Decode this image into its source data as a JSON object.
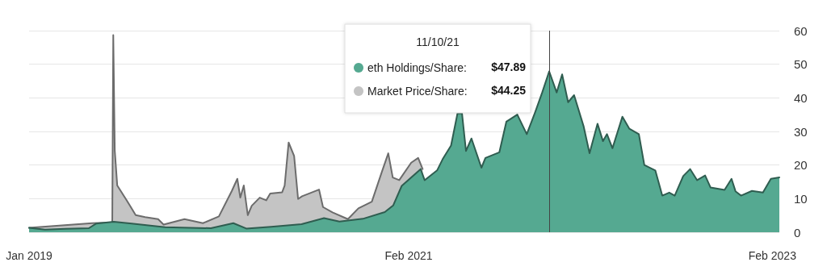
{
  "chart_data": {
    "type": "area",
    "series": [
      {
        "name": "Market Price/Share:",
        "color": "#c4c4c4",
        "x": [
          "2019-01-01",
          "2019-05-08",
          "2019-06-17",
          "2019-06-19",
          "2019-06-22",
          "2019-06-27",
          "2019-07-16",
          "2019-08-03",
          "2019-08-22",
          "2019-09-17",
          "2019-09-28",
          "2019-11-09",
          "2019-12-16",
          "2020-01-17",
          "2020-02-12",
          "2020-02-23",
          "2020-02-29",
          "2020-03-07",
          "2020-03-15",
          "2020-03-23",
          "2020-04-08",
          "2020-04-21",
          "2020-04-29",
          "2020-05-23",
          "2020-05-28",
          "2020-06-05",
          "2020-06-16",
          "2020-06-24",
          "2020-07-02",
          "2020-08-05",
          "2020-08-13",
          "2020-09-01",
          "2020-10-02",
          "2020-10-23",
          "2020-11-19",
          "2020-12-09",
          "2020-12-22",
          "2020-12-31",
          "2021-01-13",
          "2021-02-06",
          "2021-02-20",
          "2021-03-01"
        ],
        "values": [
          1.3,
          2.7,
          2.9,
          58.7,
          24.3,
          13.9,
          9.5,
          5.1,
          4.5,
          3.9,
          2.3,
          3.9,
          2.7,
          4.7,
          12.3,
          15.9,
          10.3,
          13.9,
          5.1,
          7.9,
          10.3,
          9.5,
          11.5,
          11.9,
          13.9,
          26.7,
          22.7,
          9.9,
          10.7,
          12.7,
          7.5,
          5.9,
          3.9,
          7.1,
          9.1,
          17.9,
          23.5,
          16.3,
          15.5,
          20.7,
          22.1,
          18.8
        ]
      },
      {
        "name": "eth Holdings/Share:",
        "color": "#55a991",
        "x": [
          "2019-01-01",
          "2019-02-02",
          "2019-03-15",
          "2019-05-01",
          "2019-05-16",
          "2019-06-20",
          "2019-07-26",
          "2019-10-01",
          "2020-01-01",
          "2020-02-15",
          "2020-03-12",
          "2020-05-01",
          "2020-07-01",
          "2020-08-15",
          "2020-09-15",
          "2020-11-01",
          "2020-12-15",
          "2021-01-01",
          "2021-01-18",
          "2021-02-25",
          "2021-03-05",
          "2021-03-30",
          "2021-04-10",
          "2021-04-27",
          "2021-05-10",
          "2021-05-19",
          "2021-05-27",
          "2021-06-07",
          "2021-06-27",
          "2021-07-05",
          "2021-08-02",
          "2021-08-16",
          "2021-09-07",
          "2021-09-26",
          "2021-10-13",
          "2021-10-27",
          "2021-11-10",
          "2021-11-25",
          "2021-12-06",
          "2021-12-18",
          "2021-12-30",
          "2022-01-18",
          "2022-01-30",
          "2022-02-15",
          "2022-02-26",
          "2022-03-06",
          "2022-03-17",
          "2022-04-06",
          "2022-04-20",
          "2022-05-09",
          "2022-05-20",
          "2022-06-11",
          "2022-06-25",
          "2022-07-09",
          "2022-07-20",
          "2022-08-06",
          "2022-08-20",
          "2022-09-03",
          "2022-09-19",
          "2022-09-30",
          "2022-10-28",
          "2022-11-11",
          "2022-11-19",
          "2022-11-30",
          "2022-12-22",
          "2023-01-13",
          "2023-01-29",
          "2023-02-15"
        ],
        "values": [
          1.3,
          0.8,
          1.0,
          1.2,
          2.6,
          3.1,
          2.6,
          1.5,
          1.2,
          2.7,
          1.1,
          1.6,
          2.4,
          4.2,
          3.2,
          4.0,
          6.0,
          8.0,
          13.8,
          18.8,
          15.5,
          18.4,
          21.7,
          25.8,
          35.4,
          35.4,
          24.2,
          27.9,
          19.2,
          22.1,
          23.8,
          32.9,
          35.0,
          29.2,
          35.8,
          41.6,
          47.89,
          41.6,
          47.0,
          38.7,
          40.8,
          31.6,
          23.5,
          32.3,
          27.1,
          29.2,
          25.0,
          34.4,
          30.8,
          29.2,
          20.0,
          18.4,
          10.9,
          11.8,
          10.9,
          16.7,
          18.8,
          15.5,
          16.9,
          13.3,
          12.6,
          15.9,
          12.2,
          10.9,
          12.3,
          11.8,
          15.9,
          16.3
        ]
      }
    ],
    "xlim": [
      "2019-01-01",
      "2023-02-15"
    ],
    "xticks": [
      {
        "value": "2019-01-01",
        "label": "Jan 2019"
      },
      {
        "value": "2021-02-01",
        "label": "Feb 2021"
      },
      {
        "value": "2023-02-01",
        "label": "Feb 2023"
      }
    ],
    "ylim": [
      0,
      60
    ],
    "yticks": [
      0,
      10,
      20,
      30,
      40,
      50,
      60
    ],
    "grid": "y",
    "legend": "top",
    "marker": "none",
    "line_style": "solid",
    "ref_lines": [
      {
        "axis": "x",
        "value": "2021-11-10",
        "color": "#444444"
      }
    ],
    "annotations": [
      "11/10/21",
      "$47.89",
      "$44.25"
    ]
  }
}
